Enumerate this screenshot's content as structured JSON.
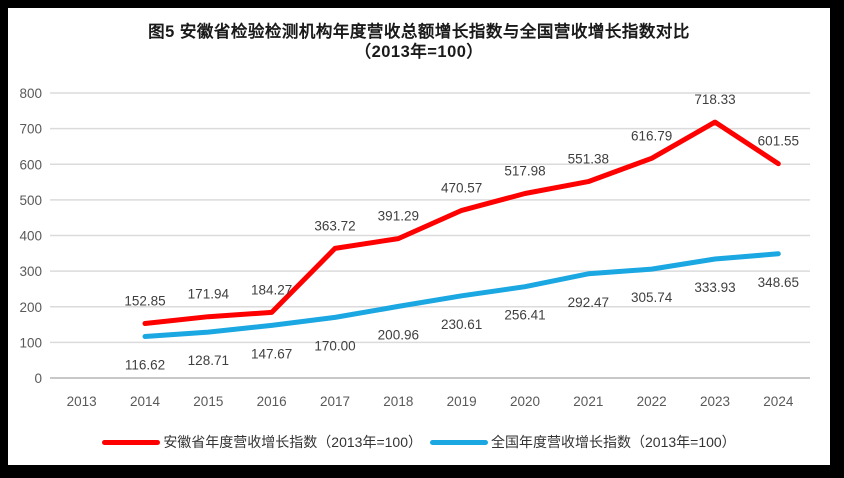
{
  "figure": {
    "title_line1": "图5  安徽省检验检测机构年度营收总额增长指数与全国营收增长指数对比",
    "title_line2": "（2013年=100）"
  },
  "chart_data": {
    "type": "line",
    "categories": [
      "2013",
      "2014",
      "2015",
      "2016",
      "2017",
      "2018",
      "2019",
      "2020",
      "2021",
      "2022",
      "2023",
      "2024"
    ],
    "series": [
      {
        "name": "安徽省年度营收增长指数（2013年=100）",
        "color": "#FF0000",
        "values": [
          null,
          152.85,
          171.94,
          184.27,
          363.72,
          391.29,
          470.57,
          517.98,
          551.38,
          616.79,
          718.33,
          601.55
        ]
      },
      {
        "name": "全国年度营收增长指数（2013年=100）",
        "color": "#1BA7E2",
        "values": [
          null,
          116.62,
          128.71,
          147.67,
          170.0,
          200.96,
          230.61,
          256.41,
          292.47,
          305.74,
          333.93,
          348.65
        ]
      }
    ],
    "title": "图5 安徽省检验检测机构年度营收总额增长指数与全国营收增长指数对比（2013年=100）",
    "xlabel": "",
    "ylabel": "",
    "ylim": [
      0,
      800
    ],
    "yticks": [
      0,
      100,
      200,
      300,
      400,
      500,
      600,
      700,
      800
    ],
    "grid": true,
    "data_labels": true,
    "legend_position": "bottom",
    "colors": {
      "grid_line": "#DBDBDB",
      "zero_axis_line": "#C0C0C0",
      "axis_text": "#595959",
      "data_label_text": "#3F3F3F"
    }
  }
}
